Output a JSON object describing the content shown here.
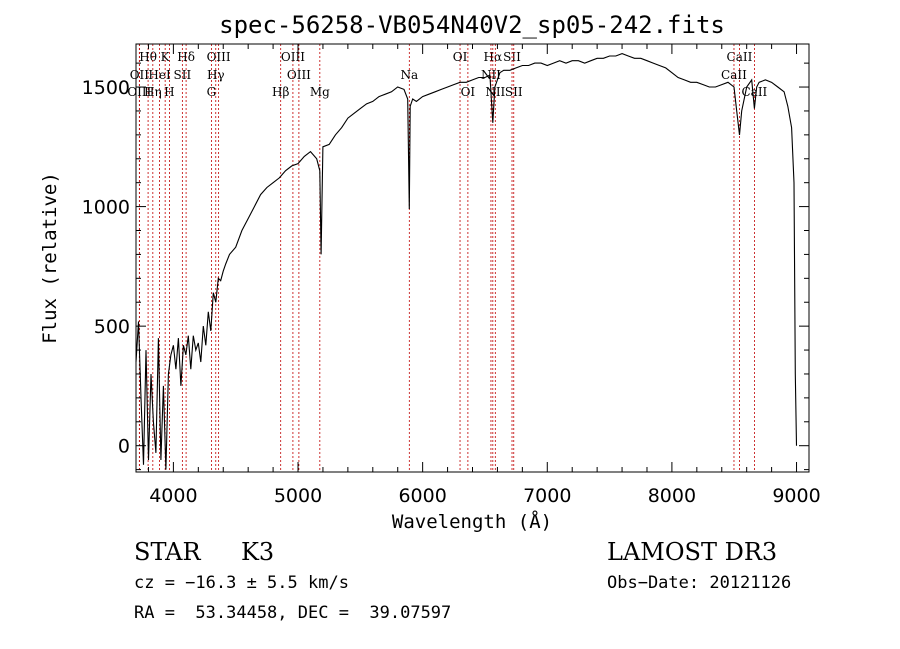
{
  "chart_data": {
    "type": "line",
    "title": "spec-56258-VB054N40V2_sp05-242.fits",
    "xlabel": "Wavelength (Å)",
    "ylabel": "Flux (relative)",
    "xlim": [
      3700,
      9100
    ],
    "ylim": [
      -110,
      1680
    ],
    "xticks": [
      4000,
      5000,
      6000,
      7000,
      8000,
      9000
    ],
    "yticks": [
      0,
      500,
      1000,
      1500
    ],
    "series": [
      {
        "name": "spectrum",
        "x": [
          3700,
          3720,
          3740,
          3760,
          3780,
          3800,
          3820,
          3840,
          3860,
          3880,
          3900,
          3920,
          3940,
          3960,
          3980,
          4000,
          4020,
          4040,
          4060,
          4080,
          4100,
          4120,
          4140,
          4160,
          4180,
          4200,
          4220,
          4240,
          4260,
          4280,
          4300,
          4320,
          4340,
          4360,
          4380,
          4400,
          4420,
          4450,
          4500,
          4550,
          4600,
          4650,
          4700,
          4750,
          4800,
          4850,
          4900,
          4950,
          5000,
          5050,
          5100,
          5150,
          5175,
          5185,
          5200,
          5250,
          5300,
          5350,
          5400,
          5450,
          5500,
          5550,
          5600,
          5650,
          5700,
          5750,
          5800,
          5850,
          5880,
          5893,
          5900,
          5920,
          5950,
          6000,
          6050,
          6100,
          6150,
          6200,
          6250,
          6300,
          6350,
          6400,
          6450,
          6500,
          6540,
          6563,
          6580,
          6620,
          6650,
          6700,
          6750,
          6800,
          6850,
          6900,
          6950,
          7000,
          7050,
          7100,
          7150,
          7200,
          7250,
          7300,
          7350,
          7400,
          7450,
          7500,
          7550,
          7600,
          7650,
          7700,
          7750,
          7800,
          7850,
          7900,
          7950,
          8000,
          8050,
          8100,
          8150,
          8200,
          8250,
          8300,
          8350,
          8400,
          8450,
          8498,
          8520,
          8542,
          8560,
          8600,
          8640,
          8662,
          8680,
          8700,
          8750,
          8800,
          8850,
          8900,
          8930,
          8960,
          8980,
          8990,
          9000
        ],
        "values": [
          350,
          520,
          200,
          -80,
          400,
          -60,
          300,
          100,
          -30,
          450,
          -60,
          250,
          -100,
          300,
          380,
          420,
          320,
          450,
          250,
          420,
          380,
          460,
          320,
          460,
          400,
          430,
          350,
          500,
          420,
          560,
          480,
          640,
          600,
          700,
          690,
          730,
          760,
          800,
          830,
          900,
          950,
          1000,
          1050,
          1080,
          1100,
          1120,
          1150,
          1170,
          1180,
          1210,
          1230,
          1200,
          1150,
          800,
          1250,
          1260,
          1300,
          1330,
          1370,
          1390,
          1410,
          1430,
          1440,
          1460,
          1470,
          1480,
          1500,
          1490,
          1450,
          990,
          1420,
          1450,
          1440,
          1460,
          1470,
          1480,
          1490,
          1500,
          1510,
          1520,
          1520,
          1530,
          1540,
          1540,
          1550,
          1350,
          1500,
          1560,
          1570,
          1570,
          1580,
          1590,
          1590,
          1600,
          1600,
          1590,
          1600,
          1610,
          1600,
          1610,
          1610,
          1600,
          1610,
          1620,
          1620,
          1630,
          1630,
          1640,
          1630,
          1620,
          1620,
          1610,
          1600,
          1590,
          1580,
          1560,
          1540,
          1530,
          1520,
          1520,
          1510,
          1500,
          1500,
          1510,
          1520,
          1500,
          1400,
          1300,
          1400,
          1500,
          1530,
          1410,
          1500,
          1520,
          1530,
          1520,
          1500,
          1480,
          1420,
          1330,
          1100,
          300,
          0
        ]
      }
    ],
    "line_markers": [
      {
        "label": "Hθ",
        "x": 3797,
        "row": 0
      },
      {
        "label": "K",
        "x": 3934,
        "row": 0
      },
      {
        "label": "Hδ",
        "x": 4102,
        "row": 0
      },
      {
        "label": "OIII",
        "x": 4363,
        "row": 0
      },
      {
        "label": "OIII",
        "x": 4959,
        "row": 0
      },
      {
        "label": "OI",
        "x": 6300,
        "row": 0
      },
      {
        "label": "Hα",
        "x": 6563,
        "row": 0
      },
      {
        "label": "SII",
        "x": 6717,
        "row": 0
      },
      {
        "label": "CaII",
        "x": 8542,
        "row": 0
      },
      {
        "label": "OII",
        "x": 3727,
        "row": 1
      },
      {
        "label": "HeI",
        "x": 3889,
        "row": 1
      },
      {
        "label": "SII",
        "x": 4072,
        "row": 1
      },
      {
        "label": "Hγ",
        "x": 4340,
        "row": 1
      },
      {
        "label": "OIII",
        "x": 5007,
        "row": 1
      },
      {
        "label": "Na",
        "x": 5893,
        "row": 1
      },
      {
        "label": "NII",
        "x": 6548,
        "row": 1
      },
      {
        "label": "CaII",
        "x": 8498,
        "row": 1
      },
      {
        "label": "OIII",
        "x": 3727,
        "row": 2
      },
      {
        "label": "Hη",
        "x": 3835,
        "row": 2
      },
      {
        "label": "H",
        "x": 3968,
        "row": 2
      },
      {
        "label": "G",
        "x": 4305,
        "row": 2
      },
      {
        "label": "Hβ",
        "x": 4861,
        "row": 2
      },
      {
        "label": "Mg",
        "x": 5175,
        "row": 2
      },
      {
        "label": "OI",
        "x": 6363,
        "row": 2
      },
      {
        "label": "NII",
        "x": 6583,
        "row": 2
      },
      {
        "label": "SII",
        "x": 6731,
        "row": 2
      },
      {
        "label": "CaII",
        "x": 8662,
        "row": 2
      }
    ]
  },
  "info": {
    "object_class": "STAR",
    "subclass": "K3",
    "survey": "LAMOST DR3",
    "redshift": "cz = −16.3 ± 5.5 km/s",
    "obs_date": "Obs−Date: 20121126",
    "coords": "RA =  53.34458, DEC =  39.07597"
  }
}
